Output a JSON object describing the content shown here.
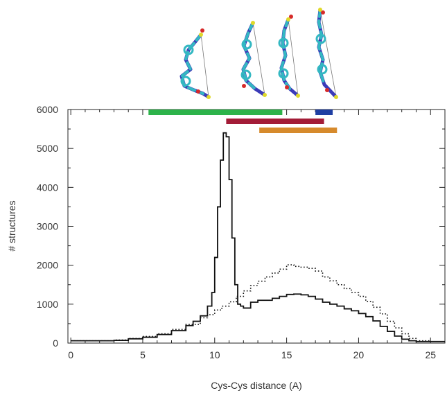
{
  "chart_data": {
    "type": "line",
    "xlabel": "Cys-Cys distance (A)",
    "ylabel": "# structures",
    "xlim": [
      -0.2,
      26
    ],
    "ylim": [
      0,
      6000
    ],
    "x_ticks": [
      0,
      5,
      10,
      15,
      20,
      25
    ],
    "y_ticks": [
      0,
      1000,
      2000,
      3000,
      4000,
      5000,
      6000
    ],
    "grid": false,
    "legend": "none",
    "series": [
      {
        "style": "solid",
        "color": "#111111",
        "x": [
          0,
          1,
          2,
          3,
          4,
          5,
          6,
          7,
          8,
          8.5,
          9,
          9.5,
          9.8,
          10,
          10.2,
          10.4,
          10.6,
          10.8,
          11,
          11.2,
          11.4,
          11.6,
          11.8,
          12,
          12.5,
          13,
          13.5,
          14,
          14.5,
          15,
          15.5,
          16,
          16.5,
          17,
          17.5,
          18,
          18.5,
          19,
          19.5,
          20,
          20.5,
          21,
          21.5,
          22,
          22.5,
          23,
          23.5,
          24,
          24.5,
          25,
          26
        ],
        "y": [
          60,
          60,
          60,
          70,
          110,
          150,
          220,
          320,
          450,
          560,
          700,
          950,
          1300,
          2200,
          3500,
          4700,
          5400,
          5300,
          4200,
          2700,
          1500,
          1000,
          950,
          900,
          1050,
          1100,
          1100,
          1150,
          1200,
          1250,
          1260,
          1240,
          1200,
          1130,
          1050,
          1000,
          950,
          880,
          830,
          760,
          680,
          570,
          430,
          300,
          180,
          100,
          60,
          40,
          40,
          40,
          40
        ]
      },
      {
        "style": "dotted",
        "color": "#111111",
        "x": [
          0,
          1,
          2,
          3,
          4,
          5,
          6,
          7,
          8,
          9,
          9.5,
          10,
          10.5,
          11,
          11.5,
          12,
          12.5,
          13,
          13.5,
          14,
          14.5,
          15,
          15.5,
          16,
          16.5,
          17,
          17.5,
          18,
          18.5,
          19,
          19.5,
          20,
          20.5,
          21,
          21.5,
          22,
          22.5,
          23,
          23.5,
          24,
          25,
          26
        ],
        "y": [
          60,
          60,
          60,
          80,
          120,
          170,
          240,
          350,
          480,
          650,
          730,
          850,
          950,
          1060,
          1200,
          1340,
          1480,
          1590,
          1700,
          1800,
          1900,
          2010,
          1970,
          1950,
          1920,
          1850,
          1700,
          1600,
          1500,
          1400,
          1300,
          1200,
          1070,
          920,
          750,
          560,
          390,
          240,
          120,
          60,
          40,
          40
        ]
      }
    ],
    "range_bars": [
      {
        "color": "#2db34a",
        "x_start": 5.4,
        "x_end": 14.7
      },
      {
        "color": "#a31c37",
        "x_start": 10.8,
        "x_end": 17.6
      },
      {
        "color": "#d68a2c",
        "x_start": 13.1,
        "x_end": 18.5
      },
      {
        "color": "#1f3fa3",
        "x_start": 17.0,
        "x_end": 18.2
      }
    ]
  },
  "structures": [
    {
      "icon": "cyclic-peptide-structure-icon",
      "conformation": "folded"
    },
    {
      "icon": "cyclic-peptide-structure-icon",
      "conformation": "partially-extended"
    },
    {
      "icon": "cyclic-peptide-structure-icon",
      "conformation": "extended"
    },
    {
      "icon": "cyclic-peptide-structure-icon",
      "conformation": "fully-extended"
    }
  ],
  "colors": {
    "atom_carbon": "#33b8c2",
    "atom_nitrogen": "#3b3bb8",
    "atom_oxygen": "#d62a2a",
    "atom_sulfur": "#e0d92a"
  }
}
